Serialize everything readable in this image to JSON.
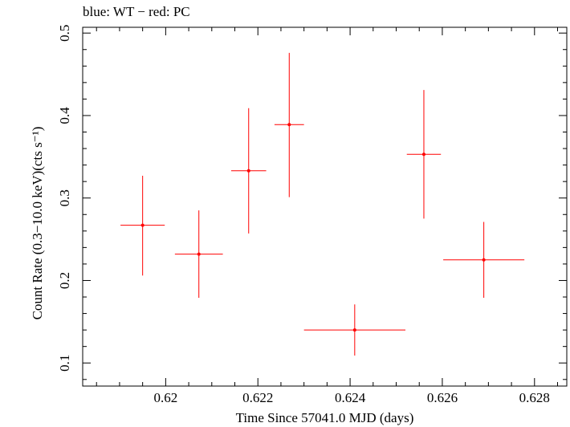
{
  "title": "blue: WT − red: PC",
  "chart_data": {
    "type": "scatter",
    "title": "blue: WT − red: PC",
    "xlabel": "Time Since 57041.0 MJD (days)",
    "ylabel": "Count Rate (0.3−10.0 keV)(cts s⁻¹)",
    "xlim": [
      0.6182,
      0.6287
    ],
    "ylim": [
      0.072,
      0.507
    ],
    "xticks": [
      0.62,
      0.622,
      0.624,
      0.626,
      0.628
    ],
    "xtick_labels": [
      "0.62",
      "0.622",
      "0.624",
      "0.626",
      "0.628"
    ],
    "yticks": [
      0.1,
      0.2,
      0.3,
      0.4,
      0.5
    ],
    "ytick_labels": [
      "0.1",
      "0.2",
      "0.3",
      "0.4",
      "0.5"
    ],
    "grid": false,
    "series": [
      {
        "color": "#ff0000",
        "points": [
          {
            "x": 0.6195,
            "xerr": 0.00048,
            "y": 0.267,
            "yerr_lo": 0.061,
            "yerr_hi": 0.06
          },
          {
            "x": 0.62072,
            "xerr": 0.00052,
            "y": 0.232,
            "yerr_lo": 0.053,
            "yerr_hi": 0.053
          },
          {
            "x": 0.6218,
            "xerr": 0.00038,
            "y": 0.333,
            "yerr_lo": 0.076,
            "yerr_hi": 0.076
          },
          {
            "x": 0.62268,
            "xerr": 0.00032,
            "y": 0.389,
            "yerr_lo": 0.088,
            "yerr_hi": 0.087
          },
          {
            "x": 0.6241,
            "xerr": 0.0011,
            "y": 0.14,
            "yerr_lo": 0.031,
            "yerr_hi": 0.031
          },
          {
            "x": 0.6256,
            "xerr": 0.00037,
            "y": 0.353,
            "yerr_lo": 0.078,
            "yerr_hi": 0.078
          },
          {
            "x": 0.6269,
            "xerr": 0.00088,
            "y": 0.225,
            "yerr_lo": 0.046,
            "yerr_hi": 0.046
          }
        ]
      }
    ]
  }
}
